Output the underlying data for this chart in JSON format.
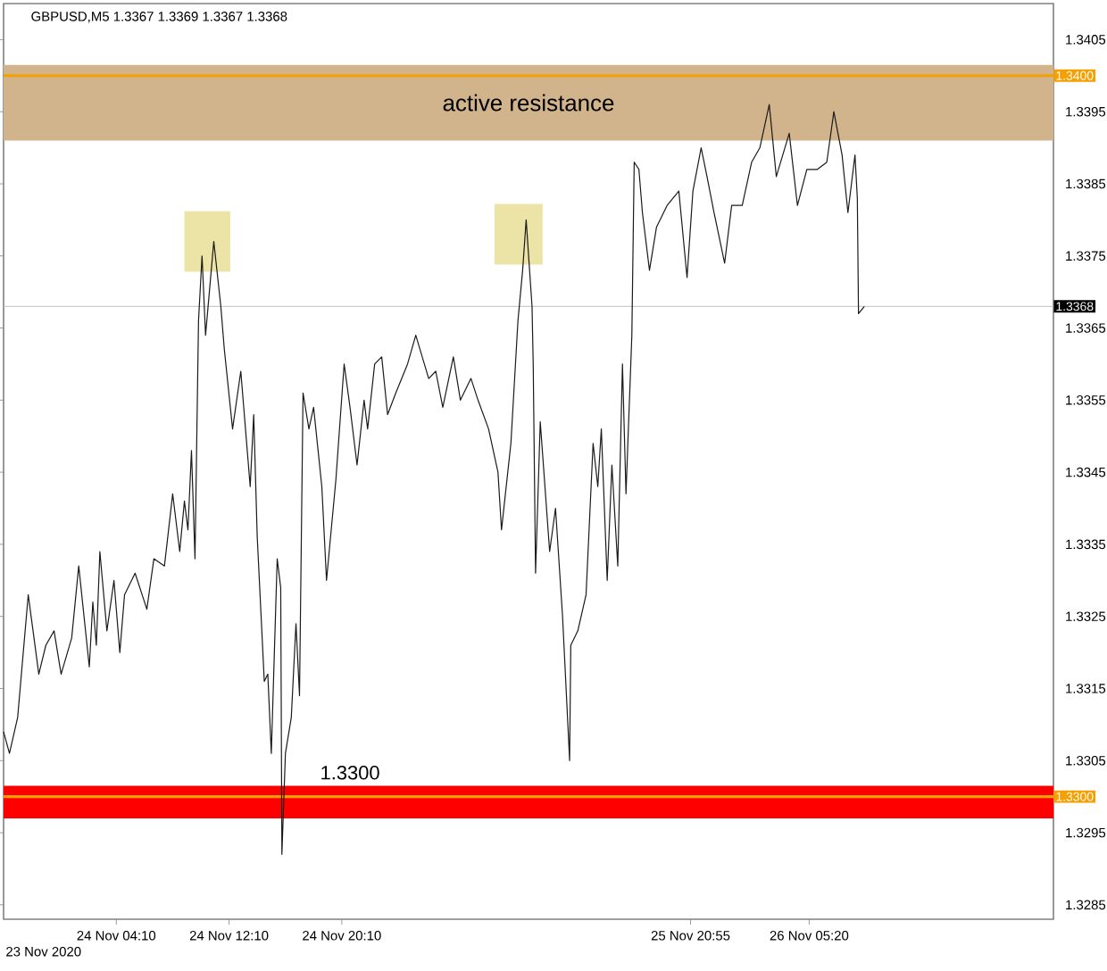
{
  "chart_data": {
    "type": "line",
    "title": "GBPUSD,M5 1.3367 1.3369 1.3367 1.3368",
    "x": [
      "2020-11-23T20:10",
      "2020-11-23T20:35",
      "2020-11-23T21:10",
      "2020-11-23T21:55",
      "2020-11-23T22:40",
      "2020-11-23T23:10",
      "2020-11-23T23:45",
      "2020-11-24T00:15",
      "2020-11-24T01:00",
      "2020-11-24T01:30",
      "2020-11-24T02:15",
      "2020-11-24T02:30",
      "2020-11-24T02:45",
      "2020-11-24T03:00",
      "2020-11-24T03:30",
      "2020-11-24T04:00",
      "2020-11-24T04:25",
      "2020-11-24T04:45",
      "2020-11-24T05:30",
      "2020-11-24T06:20",
      "2020-11-24T06:50",
      "2020-11-24T07:35",
      "2020-11-24T08:10",
      "2020-11-24T08:40",
      "2020-11-24T09:00",
      "2020-11-24T09:15",
      "2020-11-24T09:30",
      "2020-11-24T09:45",
      "2020-11-24T10:00",
      "2020-11-24T10:15",
      "2020-11-24T10:30",
      "2020-11-24T11:05",
      "2020-11-24T11:35",
      "2020-11-24T11:50",
      "2020-11-24T12:25",
      "2020-11-24T13:00",
      "2020-11-24T13:40",
      "2020-11-24T13:55",
      "2020-11-24T14:10",
      "2020-11-24T14:40",
      "2020-11-24T14:55",
      "2020-11-24T15:10",
      "2020-11-24T15:35",
      "2020-11-24T15:50",
      "2020-11-24T15:55",
      "2020-11-24T16:10",
      "2020-11-24T16:35",
      "2020-11-24T16:55",
      "2020-11-24T17:10",
      "2020-11-24T17:25",
      "2020-11-24T17:50",
      "2020-11-24T18:10",
      "2020-11-24T18:45",
      "2020-11-24T19:05",
      "2020-11-24T19:45",
      "2020-11-24T20:20",
      "2020-11-24T20:45",
      "2020-11-24T21:15",
      "2020-11-24T21:45",
      "2020-11-24T22:00",
      "2020-11-24T22:30",
      "2020-11-24T23:00",
      "2020-11-24T23:25",
      "2020-11-25T00:00",
      "2020-11-25T00:50",
      "2020-11-25T01:25",
      "2020-11-25T02:20",
      "2020-11-25T02:50",
      "2020-11-25T03:20",
      "2020-11-25T04:05",
      "2020-11-25T04:35",
      "2020-11-25T05:20",
      "2020-11-25T05:50",
      "2020-11-25T06:35",
      "2020-11-25T07:15",
      "2020-11-25T07:30",
      "2020-11-25T08:10",
      "2020-11-25T08:40",
      "2020-11-25T09:00",
      "2020-11-25T09:15",
      "2020-11-25T09:40",
      "2020-11-25T09:45",
      "2020-11-25T09:55",
      "2020-11-25T10:15",
      "2020-11-25T10:55",
      "2020-11-25T11:20",
      "2020-11-25T11:50",
      "2020-11-25T12:20",
      "2020-11-25T12:25",
      "2020-11-25T12:55",
      "2020-11-25T13:30",
      "2020-11-25T14:00",
      "2020-11-25T14:20",
      "2020-11-25T14:35",
      "2020-11-25T15:00",
      "2020-11-25T15:20",
      "2020-11-25T15:45",
      "2020-11-25T16:05",
      "2020-11-25T16:20",
      "2020-11-25T16:45",
      "2020-11-25T16:55",
      "2020-11-25T17:15",
      "2020-11-25T17:30",
      "2020-11-25T18:00",
      "2020-11-25T18:30",
      "2020-11-25T19:15",
      "2020-11-25T20:05",
      "2020-11-25T20:40",
      "2020-11-25T21:05",
      "2020-11-25T21:40",
      "2020-11-25T22:05",
      "2020-11-25T22:35",
      "2020-11-25T23:20",
      "2020-11-25T23:50",
      "2020-11-26T00:35",
      "2020-11-26T01:15",
      "2020-11-26T01:50",
      "2020-11-26T02:30",
      "2020-11-26T03:00",
      "2020-11-26T03:55",
      "2020-11-26T04:30",
      "2020-11-26T05:10",
      "2020-11-26T05:55",
      "2020-11-26T06:35",
      "2020-11-26T07:05",
      "2020-11-26T07:40",
      "2020-11-26T08:05",
      "2020-11-26T08:35",
      "2020-11-26T08:45",
      "2020-11-26T08:50",
      "2020-11-26T09:15"
    ],
    "values": [
      1.3309,
      1.3306,
      1.3311,
      1.3328,
      1.3317,
      1.3321,
      1.3323,
      1.3317,
      1.3322,
      1.3332,
      1.3318,
      1.3327,
      1.3321,
      1.3334,
      1.3323,
      1.333,
      1.332,
      1.3328,
      1.3331,
      1.3326,
      1.3333,
      1.3332,
      1.3342,
      1.3334,
      1.3341,
      1.3337,
      1.3348,
      1.3333,
      1.3366,
      1.3375,
      1.3364,
      1.3377,
      1.3368,
      1.3362,
      1.3351,
      1.3359,
      1.3343,
      1.3353,
      1.3336,
      1.3316,
      1.3317,
      1.3306,
      1.3333,
      1.3329,
      1.3292,
      1.3306,
      1.3311,
      1.3324,
      1.3314,
      1.3356,
      1.3351,
      1.3354,
      1.3343,
      1.333,
      1.3344,
      1.336,
      1.3354,
      1.3346,
      1.3355,
      1.3351,
      1.336,
      1.3361,
      1.3353,
      1.3356,
      1.336,
      1.3364,
      1.3358,
      1.3359,
      1.3354,
      1.3361,
      1.3355,
      1.3358,
      1.3355,
      1.3351,
      1.3345,
      1.3337,
      1.3349,
      1.3366,
      1.3373,
      1.338,
      1.3368,
      1.336,
      1.3331,
      1.3352,
      1.3334,
      1.334,
      1.3325,
      1.3305,
      1.3321,
      1.3323,
      1.3328,
      1.3349,
      1.3343,
      1.3351,
      1.333,
      1.3346,
      1.3332,
      1.336,
      1.3342,
      1.3364,
      1.3388,
      1.3387,
      1.3381,
      1.3373,
      1.3379,
      1.3382,
      1.3384,
      1.3372,
      1.3384,
      1.339,
      1.3386,
      1.3381,
      1.3374,
      1.3382,
      1.3382,
      1.3388,
      1.339,
      1.3396,
      1.3386,
      1.3392,
      1.3382,
      1.3387,
      1.3387,
      1.3388,
      1.3395,
      1.3389,
      1.3381,
      1.3389,
      1.3383,
      1.3367,
      1.3368
    ],
    "color": "#1a1a1a",
    "xlim": [
      "2020-11-23T20:10",
      "2020-11-26T22:40"
    ],
    "ylim": [
      1.3283,
      1.341
    ],
    "annotations": [
      "23 Nov 2020"
    ],
    "xticks": [
      {
        "value": "2020-11-24T04:10",
        "label": "24 Nov 04:10"
      },
      {
        "value": "2020-11-24T12:10",
        "label": "24 Nov 12:10"
      },
      {
        "value": "2020-11-24T20:10",
        "label": "24 Nov 20:10"
      },
      {
        "value": "2020-11-25T20:55",
        "label": "25 Nov 20:55"
      },
      {
        "value": "2020-11-26T05:20",
        "label": "26 Nov 05:20"
      }
    ],
    "yticks": [
      1.3285,
      1.3295,
      1.3305,
      1.3315,
      1.3325,
      1.3335,
      1.3345,
      1.3355,
      1.3365,
      1.3375,
      1.3385,
      1.3395,
      1.3405
    ],
    "bands": [
      {
        "axis": "y",
        "from": 1.3391,
        "to": 1.34015,
        "label": "active resistance",
        "color": "#d2b48c"
      },
      {
        "axis": "y",
        "from": 1.3297,
        "to": 1.33015,
        "label": "1.3300",
        "color": "#ff0000"
      }
    ],
    "ref_lines": [
      {
        "axis": "y",
        "value": 1.34,
        "label": "1.3400",
        "color": "#f5a000"
      },
      {
        "axis": "y",
        "value": 1.33,
        "label": "1.3300",
        "color": "#f5a000"
      },
      {
        "axis": "y",
        "value": 1.3368,
        "label": "1.3368",
        "color": "#c0c0c0"
      }
    ]
  }
}
